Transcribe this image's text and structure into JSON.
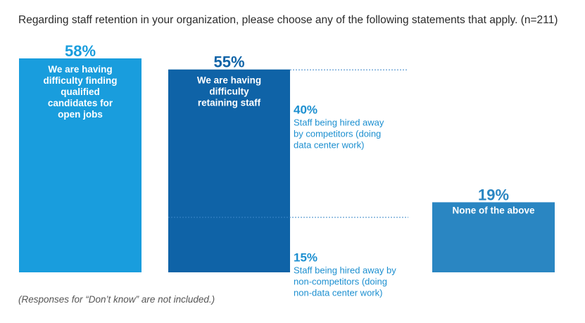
{
  "title": "Regarding staff retention in your organization, please choose any of the following statements that apply. (n=211)",
  "footnote": "(Responses for “Don’t know” are not included.)",
  "colors": {
    "bar_light": "#199ddd",
    "bar_dark": "#0f63a7",
    "bar_mid": "#2a86c2",
    "text_blue": "#1c8fd0",
    "dotted": "#3a86c8"
  },
  "chart_data": {
    "type": "bar",
    "title": "Regarding staff retention in your organization, please choose any of the following statements that apply. (n=211)",
    "ylim": [
      0,
      58
    ],
    "bars": [
      {
        "value": 58,
        "label": "58%",
        "text_lines": [
          "We are having",
          "difficulty finding",
          "qualified",
          "candidates for",
          "open jobs"
        ]
      },
      {
        "value": 55,
        "label": "55%",
        "text_lines": [
          "We are having",
          "difficulty",
          "retaining staff"
        ],
        "breakdown": [
          {
            "value": 40,
            "label": "40%",
            "text_lines": [
              "Staff being hired away",
              "by competitors (doing",
              "data center work)"
            ]
          },
          {
            "value": 15,
            "label": "15%",
            "text_lines": [
              "Staff being hired away by",
              "non-competitors (doing",
              "non-data center work)"
            ]
          }
        ]
      },
      {
        "value": 19,
        "label": "19%",
        "text_lines": [
          "None of the above"
        ]
      }
    ]
  }
}
